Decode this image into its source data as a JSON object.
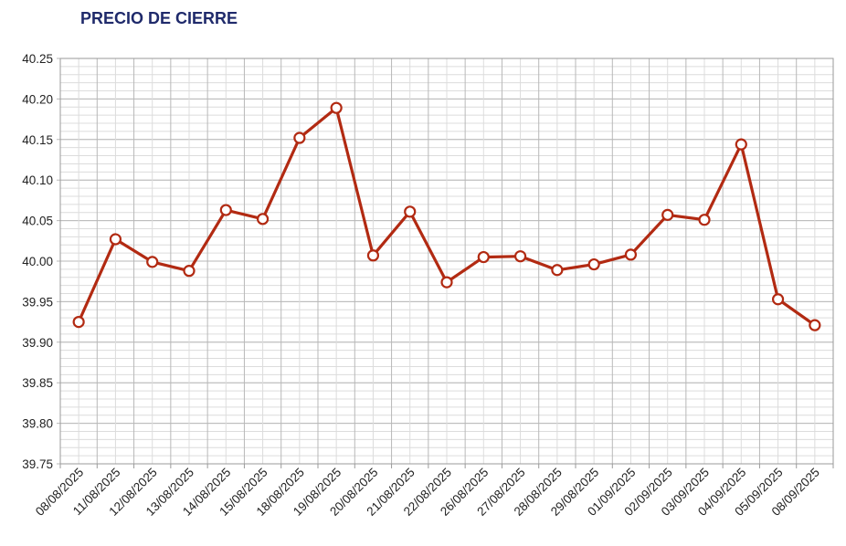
{
  "chart_data": {
    "type": "line",
    "title": "PRECIO DE CIERRE",
    "xlabel": "",
    "ylabel": "",
    "ylim": [
      39.75,
      40.25
    ],
    "yticks": [
      "40.25",
      "40.20",
      "40.15",
      "40.10",
      "40.05",
      "40.00",
      "39.95",
      "39.90",
      "39.85",
      "39.80",
      "39.75"
    ],
    "grid": true,
    "legend": "none",
    "categories": [
      "08/08/2025",
      "11/08/2025",
      "12/08/2025",
      "13/08/2025",
      "14/08/2025",
      "15/08/2025",
      "18/08/2025",
      "19/08/2025",
      "20/08/2025",
      "21/08/2025",
      "22/08/2025",
      "26/08/2025",
      "27/08/2025",
      "28/08/2025",
      "29/08/2025",
      "01/09/2025",
      "02/09/2025",
      "03/09/2025",
      "04/09/2025",
      "05/09/2025",
      "08/09/2025"
    ],
    "values": [
      39.925,
      40.027,
      39.999,
      39.988,
      40.063,
      40.052,
      40.152,
      40.189,
      40.007,
      40.061,
      39.974,
      40.005,
      40.006,
      39.989,
      39.996,
      40.008,
      40.057,
      40.051,
      40.144,
      39.953,
      39.921
    ],
    "colors": {
      "line": "#b22a12",
      "marker_fill": "#ffffff",
      "grid": "#c8c8c8",
      "axis": "#9a9a9a",
      "title": "#1f2a6b"
    }
  }
}
